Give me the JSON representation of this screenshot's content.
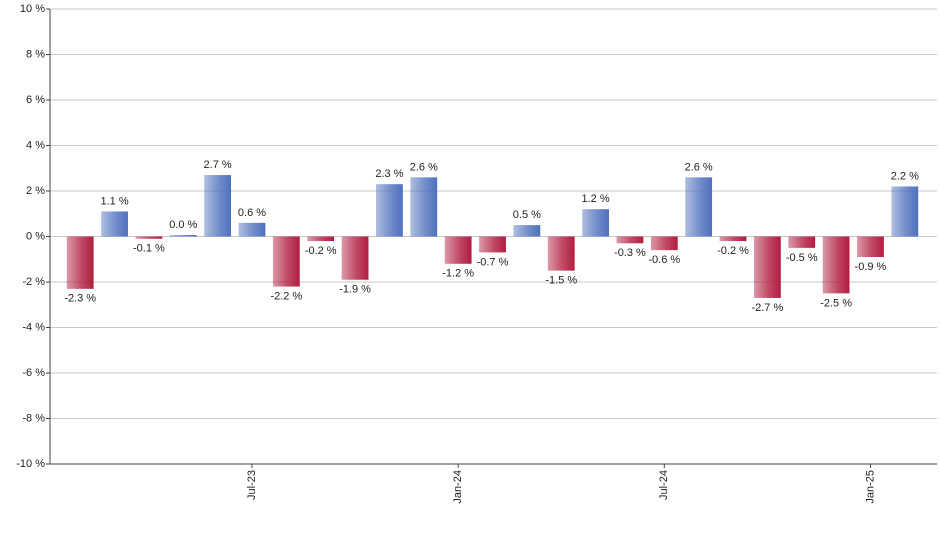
{
  "chart_data": {
    "type": "bar",
    "categories": [
      null,
      null,
      null,
      null,
      null,
      "Jul-23",
      null,
      null,
      null,
      null,
      null,
      "Jan-24",
      null,
      null,
      null,
      null,
      null,
      "Jul-24",
      null,
      null,
      null,
      null,
      null,
      "Jan-25",
      null
    ],
    "values": [
      -2.3,
      1.1,
      -0.1,
      0.0,
      2.7,
      0.6,
      -2.2,
      -0.2,
      -1.9,
      2.3,
      2.6,
      -1.2,
      -0.7,
      0.5,
      -1.5,
      1.2,
      -0.3,
      -0.6,
      2.6,
      -0.2,
      -2.7,
      -0.5,
      -2.5,
      -0.9,
      2.2
    ],
    "value_labels": [
      "-2.3 %",
      "1.1 %",
      "-0.1 %",
      "0.0 %",
      "2.7 %",
      "0.6 %",
      "-2.2 %",
      "-0.2 %",
      "-1.9 %",
      "2.3 %",
      "2.6 %",
      "-1.2 %",
      "-0.7 %",
      "0.5 %",
      "-1.5 %",
      "1.2 %",
      "-0.3 %",
      "-0.6 %",
      "2.6 %",
      "-0.2 %",
      "-2.7 %",
      "-0.5 %",
      "-2.5 %",
      "-0.9 %",
      "2.2 %"
    ],
    "positive_color": "#4f70bd",
    "negative_color": "#b01c3e",
    "ylim": [
      -10,
      10
    ],
    "yticks": [
      {
        "value": -10,
        "label": "-10 %"
      },
      {
        "value": -8,
        "label": "-8 %"
      },
      {
        "value": -6,
        "label": "-6 %"
      },
      {
        "value": -4,
        "label": "-4 %"
      },
      {
        "value": -2,
        "label": "-2 %"
      },
      {
        "value": 0,
        "label": "0 %"
      },
      {
        "value": 2,
        "label": "2 %"
      },
      {
        "value": 4,
        "label": "4 %"
      },
      {
        "value": 6,
        "label": "6 %"
      },
      {
        "value": 8,
        "label": "8 %"
      },
      {
        "value": 10,
        "label": "10 %"
      }
    ],
    "grid": true
  }
}
